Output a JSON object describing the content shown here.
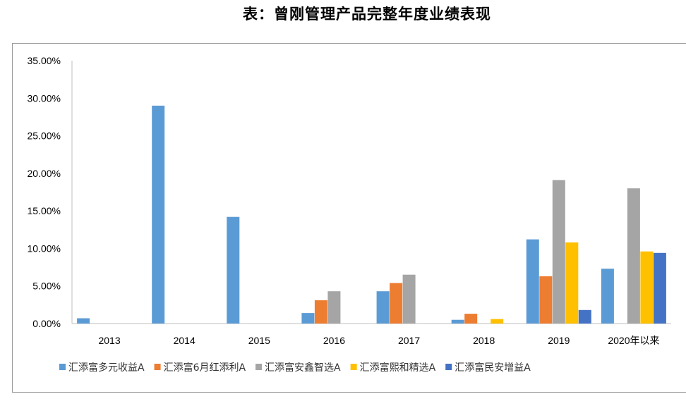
{
  "title": "表：曾刚管理产品完整年度业绩表现",
  "chart_data": {
    "type": "bar",
    "title": "",
    "xlabel": "",
    "ylabel": "",
    "ylim": [
      0,
      0.35
    ],
    "yticks": [
      "0.00%",
      "5.00%",
      "10.00%",
      "15.00%",
      "20.00%",
      "25.00%",
      "30.00%",
      "35.00%"
    ],
    "categories": [
      "2013",
      "2014",
      "2015",
      "2016",
      "2017",
      "2018",
      "2019",
      "2020年以来"
    ],
    "grid": false,
    "legend_position": "bottom",
    "series": [
      {
        "name": "汇添富多元收益A",
        "color": "#5b9bd5",
        "values": [
          0.007,
          0.29,
          0.142,
          0.014,
          0.043,
          0.005,
          0.112,
          0.073
        ]
      },
      {
        "name": "汇添富6月红添利A",
        "color": "#ed7d31",
        "values": [
          null,
          null,
          null,
          0.031,
          0.054,
          0.013,
          0.063,
          null
        ]
      },
      {
        "name": "汇添富安鑫智选A",
        "color": "#a5a5a5",
        "values": [
          null,
          null,
          null,
          0.043,
          0.065,
          null,
          0.191,
          0.18
        ]
      },
      {
        "name": "汇添富熙和精选A",
        "color": "#ffc000",
        "values": [
          null,
          null,
          null,
          null,
          null,
          0.006,
          0.108,
          0.096
        ]
      },
      {
        "name": "汇添富民安增益A",
        "color": "#4472c4",
        "values": [
          null,
          null,
          null,
          null,
          null,
          null,
          0.018,
          0.094
        ]
      }
    ]
  }
}
